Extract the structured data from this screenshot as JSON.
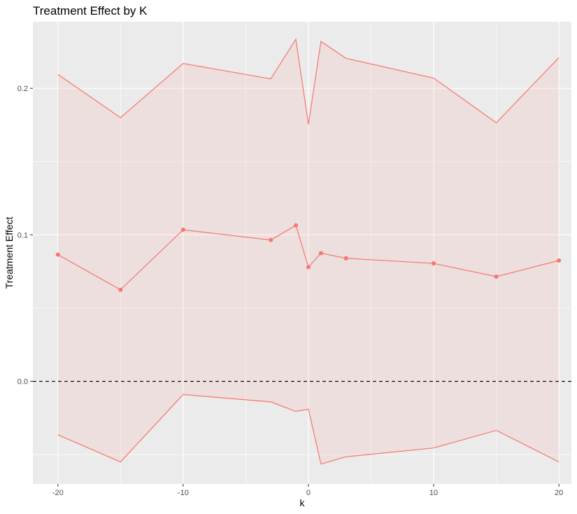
{
  "chart_data": {
    "type": "line",
    "title": "Treatment Effect by K",
    "xlabel": "k",
    "ylabel": "Treatment Effect",
    "xlim": [
      -22,
      21
    ],
    "ylim": [
      -0.07,
      0.2455
    ],
    "x_ticks": [
      -20,
      -10,
      0,
      10,
      20
    ],
    "x_tick_labels": [
      "-20",
      "-10",
      "0",
      "10",
      "20"
    ],
    "y_ticks": [
      0.0,
      0.1,
      0.2
    ],
    "y_tick_labels": [
      "0.0",
      "0.1",
      "0.2"
    ],
    "x": [
      -20,
      -15,
      -10,
      -3,
      -1,
      0,
      1,
      3,
      10,
      15,
      20
    ],
    "estimate": [
      0.0865,
      0.0625,
      0.1035,
      0.0965,
      0.1065,
      0.078,
      0.0875,
      0.084,
      0.0805,
      0.0715,
      0.0825
    ],
    "upper": [
      0.2095,
      0.18,
      0.217,
      0.2065,
      0.2335,
      0.1755,
      0.232,
      0.2205,
      0.207,
      0.1765,
      0.221
    ],
    "lower": [
      -0.0365,
      -0.055,
      -0.009,
      -0.014,
      -0.0205,
      -0.019,
      -0.0565,
      -0.0515,
      -0.0455,
      -0.0335,
      -0.055
    ],
    "reference_line": 0.0,
    "grid": true,
    "colors": {
      "series": "#F8766D",
      "ribbon": "#F8766D",
      "panel": "#EBEBEB",
      "grid": "#FFFFFF",
      "reference": "#000000"
    }
  }
}
